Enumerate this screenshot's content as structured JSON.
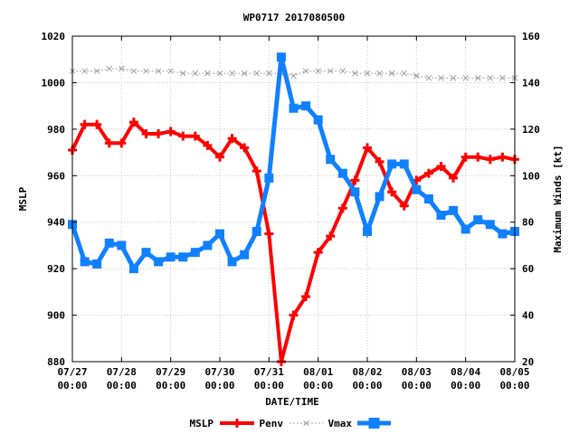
{
  "chart_data": {
    "type": "line",
    "title": "WP0717 2017080500",
    "xlabel": "DATE/TIME",
    "ylabel_left": "MSLP",
    "ylabel_right": "Maximum Winds [kt]",
    "ylim_left": [
      880,
      1020
    ],
    "ylim_right": [
      20,
      160
    ],
    "yticks_left": [
      880,
      900,
      920,
      940,
      960,
      980,
      1000,
      1020
    ],
    "yticks_right": [
      20,
      40,
      60,
      80,
      100,
      120,
      140,
      160
    ],
    "x_range_hours": [
      0,
      216
    ],
    "x_ticks": [
      {
        "date": "07/27",
        "time": "00:00"
      },
      {
        "date": "07/28",
        "time": "00:00"
      },
      {
        "date": "07/29",
        "time": "00:00"
      },
      {
        "date": "07/30",
        "time": "00:00"
      },
      {
        "date": "07/31",
        "time": "00:00"
      },
      {
        "date": "08/01",
        "time": "00:00"
      },
      {
        "date": "08/02",
        "time": "00:00"
      },
      {
        "date": "08/03",
        "time": "00:00"
      },
      {
        "date": "08/04",
        "time": "00:00"
      },
      {
        "date": "08/05",
        "time": "00:00"
      }
    ],
    "grid": true,
    "legend_position": "bottom",
    "x_hours": [
      0,
      6,
      12,
      18,
      24,
      30,
      36,
      42,
      48,
      54,
      60,
      66,
      72,
      78,
      84,
      90,
      96,
      102,
      108,
      114,
      120,
      126,
      132,
      138,
      144,
      150,
      156,
      162,
      168,
      174,
      180,
      186,
      192,
      198,
      204,
      210,
      216
    ],
    "series": [
      {
        "name": "MSLP",
        "axis": "left",
        "color": "#ff0000",
        "values": [
          971,
          982,
          982,
          974,
          974,
          983,
          978,
          978,
          979,
          977,
          977,
          973,
          968,
          976,
          972,
          962,
          935,
          880,
          900,
          908,
          927,
          934,
          946,
          958,
          972,
          966,
          953,
          947,
          958,
          961,
          964,
          959,
          968,
          968,
          967,
          968,
          967
        ]
      },
      {
        "name": "Penv",
        "axis": "left",
        "color": "#a0a0a0",
        "values": [
          1005,
          1005,
          1005,
          1006,
          1006,
          1005,
          1005,
          1005,
          1005,
          1004,
          1004,
          1004,
          1004,
          1004,
          1004,
          1004,
          1004,
          1004,
          1003,
          1005,
          1005,
          1005,
          1005,
          1004,
          1004,
          1004,
          1004,
          1004,
          1003,
          1002,
          1002,
          1002,
          1002,
          1002,
          1002,
          1002,
          1002
        ]
      },
      {
        "name": "Vmax",
        "axis": "right",
        "color": "#1080ff",
        "values": [
          79,
          63,
          62,
          71,
          70,
          60,
          67,
          63,
          65,
          65,
          67,
          70,
          75,
          63,
          66,
          76,
          99,
          151,
          129,
          130,
          124,
          107,
          101,
          93,
          76,
          91,
          105,
          105,
          94,
          90,
          83,
          85,
          77,
          81,
          79,
          75,
          76
        ]
      }
    ]
  }
}
